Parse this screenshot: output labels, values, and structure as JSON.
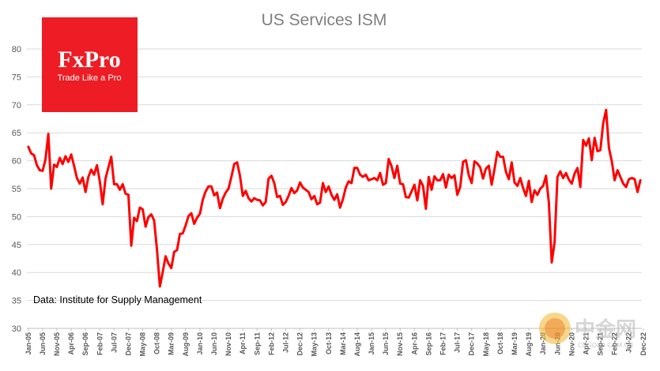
{
  "logo": {
    "name": "FxPro",
    "tagline": "Trade Like a Pro",
    "color": "#ee1c24"
  },
  "watermark": {
    "name": "中金网",
    "site": "CNGOLD.COM.CN",
    "icon": "coin-icon"
  },
  "chart_data": {
    "type": "line",
    "title": "US Services ISM",
    "annotation": "Data: Institute for Supply Management",
    "line_color": "#ff0000",
    "grid": "horizontal",
    "ylim": [
      30,
      80
    ],
    "yticks": [
      30,
      35,
      40,
      45,
      50,
      55,
      60,
      65,
      70,
      75,
      80
    ],
    "x_start": "Jan-05",
    "x_end": "Dec-22",
    "xtick_labels": [
      "Jan-05",
      "Jun-05",
      "Nov-05",
      "Apr-06",
      "Sep-06",
      "Feb-07",
      "Jul-07",
      "Dec-07",
      "May-08",
      "Oct-08",
      "Mar-09",
      "Aug-09",
      "Jan-10",
      "Jun-10",
      "Nov-10",
      "Apr-11",
      "Sep-11",
      "Feb-12",
      "Jul-12",
      "Dec-12",
      "May-13",
      "Oct-13",
      "Mar-14",
      "Aug-14",
      "Jan-15",
      "Jun-15",
      "Nov-15",
      "Apr-16",
      "Sep-16",
      "Feb-17",
      "Jul-17",
      "Dec-17",
      "May-18",
      "Oct-18",
      "Mar-19",
      "Aug-19",
      "Jan-20",
      "Jun-20",
      "Nov-20",
      "Apr-21",
      "Sep-21",
      "Feb-22",
      "Jul-22",
      "Dec-22"
    ],
    "series": [
      {
        "name": "US Services ISM",
        "values": [
          62.5,
          61.3,
          61.0,
          59.2,
          58.3,
          58.2,
          60.2,
          64.8,
          55.0,
          59.3,
          58.9,
          60.5,
          59.4,
          60.8,
          59.8,
          61.1,
          59.1,
          56.9,
          55.9,
          57.0,
          54.4,
          57.1,
          58.4,
          57.5,
          59.2,
          56.3,
          52.2,
          56.8,
          58.8,
          60.7,
          55.8,
          55.8,
          54.8,
          55.8,
          54.1,
          53.9,
          44.8,
          49.8,
          49.2,
          51.6,
          51.3,
          48.2,
          49.9,
          50.4,
          49.3,
          44.0,
          37.5,
          40.1,
          42.9,
          41.6,
          40.8,
          43.7,
          44.0,
          46.9,
          47.0,
          48.4,
          50.1,
          50.6,
          48.7,
          49.8,
          50.5,
          53.0,
          54.5,
          55.4,
          55.4,
          53.8,
          54.3,
          51.5,
          53.2,
          54.3,
          55.0,
          57.1,
          59.4,
          59.7,
          57.3,
          53.7,
          54.6,
          53.3,
          52.7,
          53.3,
          53.0,
          52.9,
          52.0,
          52.6,
          56.8,
          57.3,
          56.0,
          53.5,
          53.7,
          52.1,
          52.6,
          53.7,
          55.1,
          54.2,
          54.7,
          56.1,
          55.2,
          54.8,
          54.4,
          53.1,
          53.7,
          52.2,
          52.5,
          56.0,
          54.4,
          55.4,
          53.9,
          53.0,
          54.0,
          51.6,
          53.1,
          55.2,
          56.3,
          56.0,
          58.7,
          58.7,
          57.5,
          57.1,
          57.5,
          56.5,
          56.7,
          56.9,
          56.5,
          57.8,
          55.7,
          56.0,
          60.3,
          59.0,
          56.9,
          59.1,
          55.9,
          55.8,
          53.5,
          53.4,
          54.5,
          55.7,
          52.9,
          56.5,
          55.5,
          51.4,
          57.1,
          54.8,
          57.2,
          56.5,
          56.5,
          57.6,
          55.2,
          57.5,
          56.9,
          57.4,
          53.9,
          55.3,
          59.8,
          60.1,
          57.4,
          56.0,
          59.9,
          59.5,
          58.8,
          56.8,
          58.6,
          59.1,
          55.7,
          58.5,
          61.6,
          60.7,
          60.7,
          58.0,
          56.7,
          59.7,
          56.1,
          55.5,
          56.9,
          55.1,
          53.7,
          56.4,
          52.6,
          54.7,
          53.9,
          55.0,
          55.5,
          57.3,
          52.5,
          41.8,
          45.4,
          57.1,
          58.1,
          56.9,
          57.8,
          56.6,
          55.9,
          57.7,
          58.7,
          55.3,
          63.7,
          62.7,
          64.0,
          60.1,
          64.1,
          61.7,
          61.9,
          66.7,
          69.1,
          62.3,
          59.9,
          56.5,
          58.3,
          57.1,
          55.9,
          55.3,
          56.7,
          56.9,
          56.7,
          54.4,
          56.5
        ]
      }
    ]
  }
}
